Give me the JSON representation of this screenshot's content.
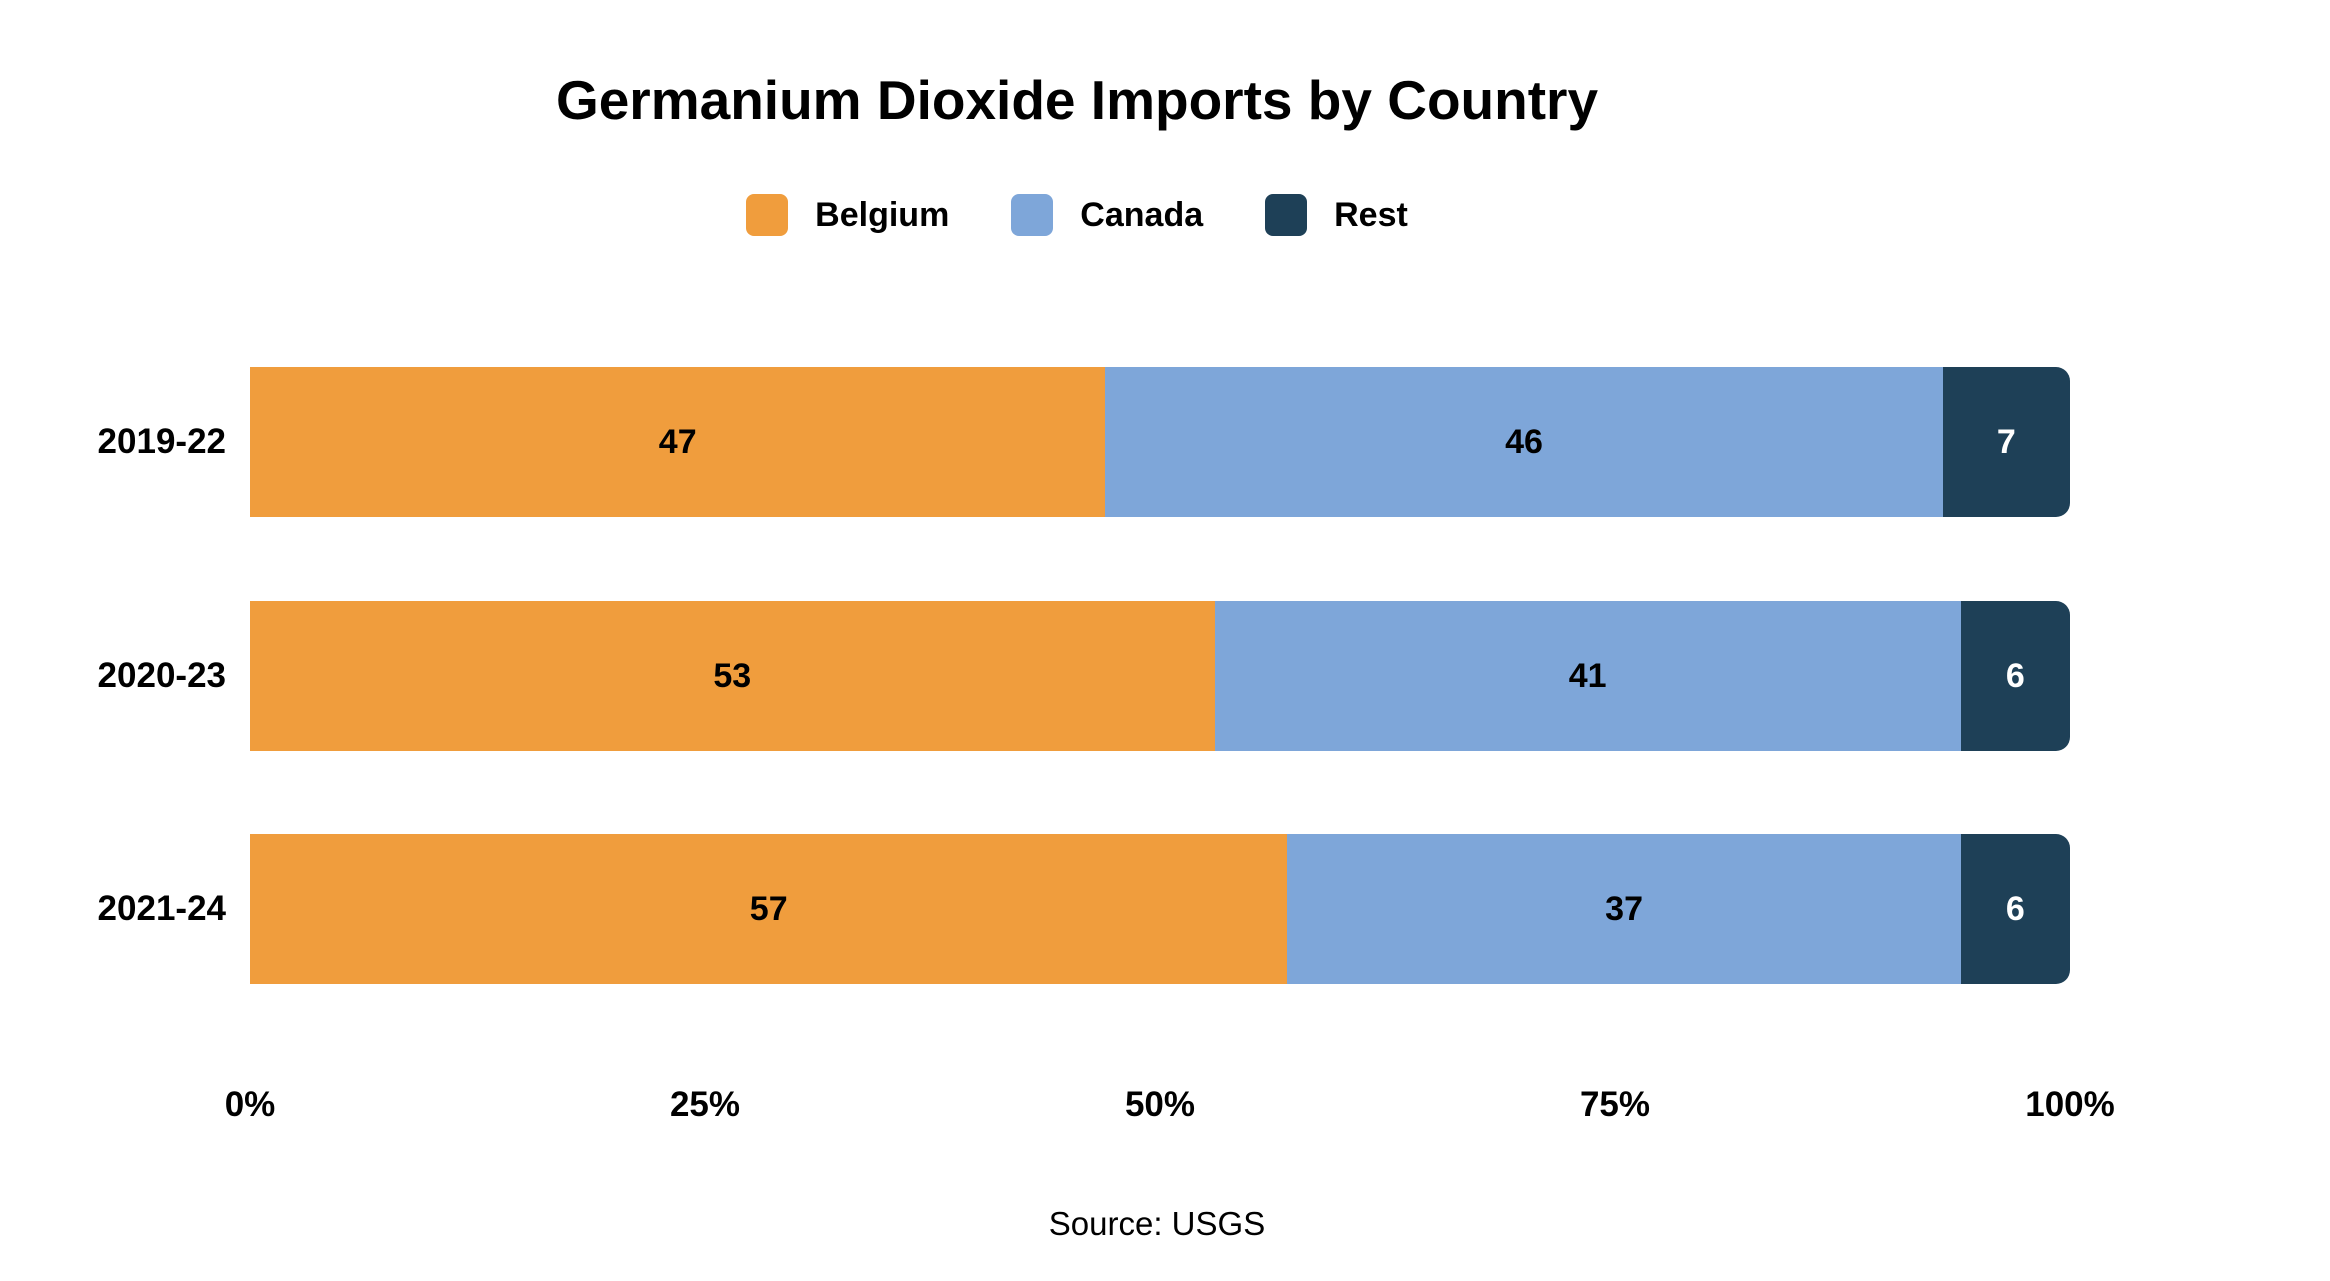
{
  "title": "Germanium Dioxide Imports by Country",
  "source": "Source: USGS",
  "legend": {
    "items": [
      {
        "label": "Belgium",
        "color": "#F09D3D"
      },
      {
        "label": "Canada",
        "color": "#7EA6D9"
      },
      {
        "label": "Rest",
        "color": "#1E4057"
      }
    ]
  },
  "colors": {
    "background": "#FFFFFF",
    "belgium": "#F09D3D",
    "canada": "#7EA6D9",
    "rest": "#1E4057",
    "text": "#000000",
    "value_on_dark": "#FFFFFF"
  },
  "chart_data": {
    "type": "bar",
    "orientation": "horizontal",
    "stacked": true,
    "title": "Germanium Dioxide Imports by Country",
    "categories": [
      "2019-22",
      "2020-23",
      "2021-24"
    ],
    "series": [
      {
        "name": "Belgium",
        "color": "#F09D3D",
        "values": [
          47,
          53,
          57
        ],
        "label_color": "#000000"
      },
      {
        "name": "Canada",
        "color": "#7EA6D9",
        "values": [
          46,
          41,
          37
        ],
        "label_color": "#000000"
      },
      {
        "name": "Rest",
        "color": "#1E4057",
        "values": [
          7,
          6,
          6
        ],
        "label_color": "#FFFFFF"
      }
    ],
    "x_ticks": [
      "0%",
      "25%",
      "50%",
      "75%",
      "100%"
    ],
    "xlim": [
      0,
      100
    ],
    "xlabel": "",
    "ylabel": "",
    "grid": false,
    "legend_position": "top",
    "caption": "Source: USGS"
  }
}
